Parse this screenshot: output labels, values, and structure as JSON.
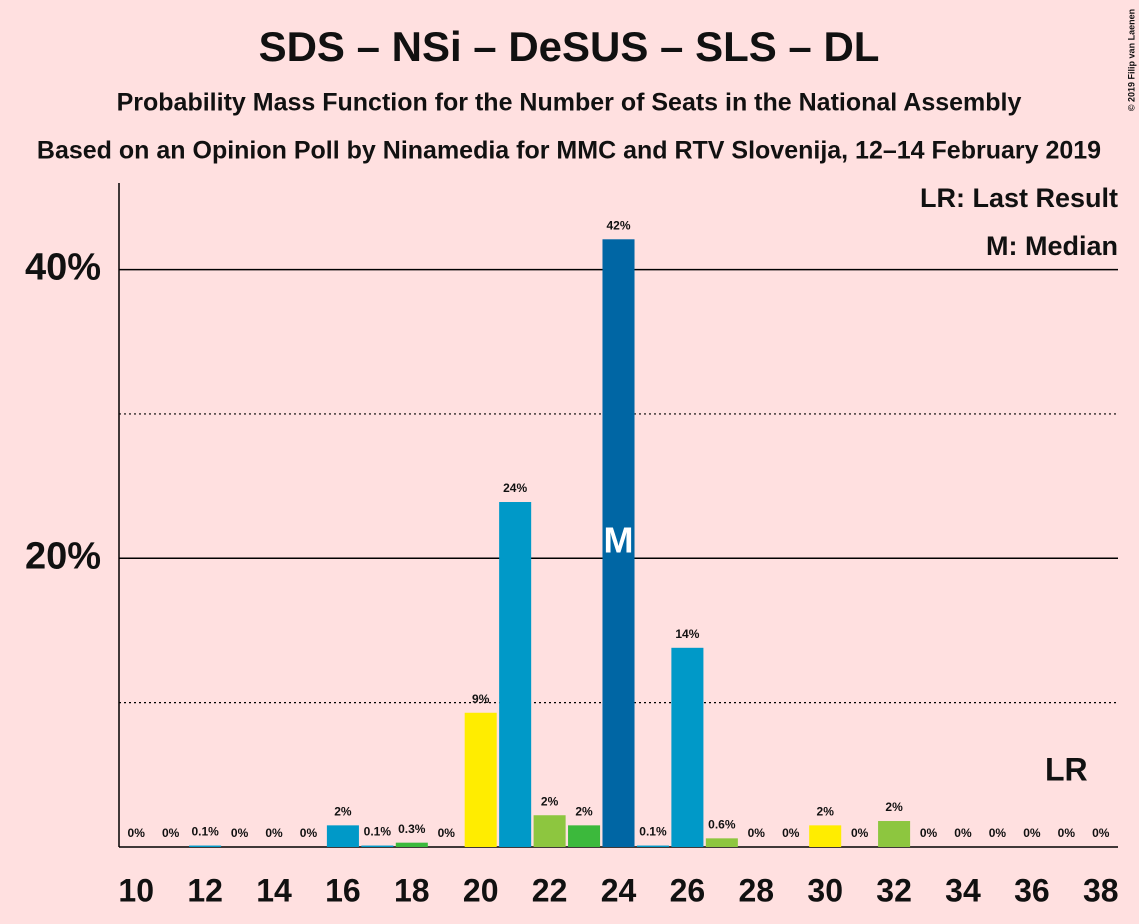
{
  "chart_data": {
    "type": "bar",
    "title": "SDS – NSi – DeSUS – SLS – DL",
    "subtitle": "Probability Mass Function for the Number of Seats in the National Assembly",
    "subtitle2": "Based on an Opinion Poll by Ninamedia for MMC and RTV Slovenija, 12–14 February 2019",
    "copyright": "© 2019 Filip van Laenen",
    "x": [
      10,
      11,
      12,
      13,
      14,
      15,
      16,
      17,
      18,
      19,
      20,
      21,
      22,
      23,
      24,
      25,
      26,
      27,
      28,
      29,
      30,
      31,
      32,
      33,
      34,
      35,
      36,
      37,
      38
    ],
    "values": [
      0,
      0,
      0.1,
      0,
      0,
      0,
      1.5,
      0.1,
      0.3,
      0,
      9.3,
      23.9,
      2.2,
      1.5,
      42.1,
      0.1,
      13.8,
      0.6,
      0,
      0,
      1.5,
      0,
      1.8,
      0,
      0,
      0,
      0,
      0,
      0
    ],
    "value_labels": [
      "0%",
      "0%",
      "0.1%",
      "0%",
      "0%",
      "0%",
      "2%",
      "0.1%",
      "0.3%",
      "0%",
      "9%",
      "24%",
      "2%",
      "2%",
      "42%",
      "0.1%",
      "14%",
      "0.6%",
      "0%",
      "0%",
      "2%",
      "0%",
      "2%",
      "0%",
      "0%",
      "0%",
      "0%",
      "0%",
      "0%"
    ],
    "colors": [
      "#0099c8",
      "#0099c8",
      "#0099c8",
      "#0099c8",
      "#0099c8",
      "#0099c8",
      "#0099c8",
      "#0099c8",
      "#3cb93c",
      "#0099c8",
      "#ffed00",
      "#0099c8",
      "#8dc63f",
      "#3cb93c",
      "#0066a4",
      "#0099c8",
      "#0099c8",
      "#8dc63f",
      "#0099c8",
      "#0099c8",
      "#ffed00",
      "#0099c8",
      "#8dc63f",
      "#0099c8",
      "#0099c8",
      "#0099c8",
      "#0099c8",
      "#0099c8",
      "#0099c8"
    ],
    "xlim": [
      9.5,
      38.5
    ],
    "xticks": [
      10,
      12,
      14,
      16,
      18,
      20,
      22,
      24,
      26,
      28,
      30,
      32,
      34,
      36,
      38
    ],
    "ylim": [
      0,
      46
    ],
    "yticks": [
      {
        "value": 20,
        "label": "20%"
      },
      {
        "value": 40,
        "label": "40%"
      }
    ],
    "minor_yticks": [
      10,
      30
    ],
    "median": 24,
    "median_label": "M",
    "last_result": 37,
    "last_result_label": "LR",
    "legend": [
      "LR: Last Result",
      "M: Median"
    ]
  }
}
